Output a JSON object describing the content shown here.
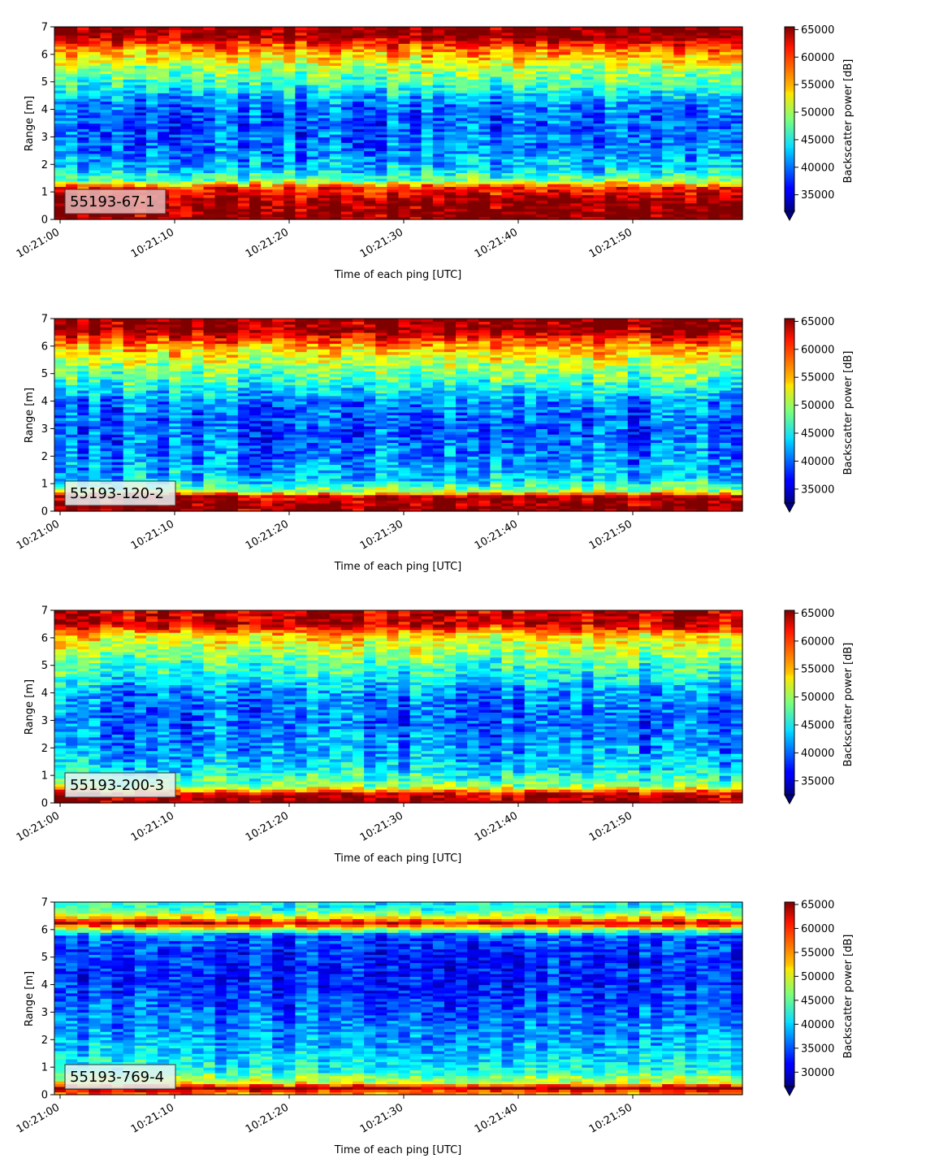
{
  "chart_data": [
    {
      "type": "heatmap",
      "label": "55193-67-1",
      "xlabel": "Time of each ping [UTC]",
      "ylabel": "Range [m]",
      "x_ticks": [
        "10:21:00",
        "10:21:10",
        "10:21:20",
        "10:21:30",
        "10:21:40",
        "10:21:50"
      ],
      "y_ticks": [
        0,
        1,
        2,
        3,
        4,
        5,
        6,
        7
      ],
      "ylim": [
        0,
        7
      ],
      "colorbar": {
        "label": "Backscatter power [dB]",
        "ticks": [
          35000,
          40000,
          45000,
          50000,
          55000,
          60000,
          65000
        ],
        "range": [
          32000,
          65500
        ],
        "colormap": "jet"
      },
      "profile": [
        {
          "range": 0.15,
          "value": 65000
        },
        {
          "range": 0.6,
          "value": 65000
        },
        {
          "range": 1.15,
          "value": 60000
        },
        {
          "range": 1.45,
          "value": 48000
        },
        {
          "range": 1.8,
          "value": 43000
        },
        {
          "range": 2.5,
          "value": 40000
        },
        {
          "range": 3.5,
          "value": 39000
        },
        {
          "range": 4.2,
          "value": 40000
        },
        {
          "range": 4.8,
          "value": 45000
        },
        {
          "range": 5.5,
          "value": 50000
        },
        {
          "range": 6.2,
          "value": 57000
        },
        {
          "range": 6.7,
          "value": 65000
        },
        {
          "range": 7.0,
          "value": 65000
        }
      ]
    },
    {
      "type": "heatmap",
      "label": "55193-120-2",
      "xlabel": "Time of each ping [UTC]",
      "ylabel": "Range [m]",
      "x_ticks": [
        "10:21:00",
        "10:21:10",
        "10:21:20",
        "10:21:30",
        "10:21:40",
        "10:21:50"
      ],
      "y_ticks": [
        0,
        1,
        2,
        3,
        4,
        5,
        6,
        7
      ],
      "ylim": [
        0,
        7
      ],
      "colorbar": {
        "label": "Backscatter power [dB]",
        "ticks": [
          35000,
          40000,
          45000,
          50000,
          55000,
          60000,
          65000
        ],
        "range": [
          32500,
          65500
        ],
        "colormap": "jet"
      },
      "profile": [
        {
          "range": 0.15,
          "value": 65000
        },
        {
          "range": 0.55,
          "value": 64000
        },
        {
          "range": 0.75,
          "value": 50000
        },
        {
          "range": 1.2,
          "value": 43000
        },
        {
          "range": 2.0,
          "value": 41000
        },
        {
          "range": 3.0,
          "value": 39500
        },
        {
          "range": 4.0,
          "value": 41000
        },
        {
          "range": 4.6,
          "value": 46000
        },
        {
          "range": 5.3,
          "value": 50000
        },
        {
          "range": 6.0,
          "value": 56000
        },
        {
          "range": 6.6,
          "value": 65000
        },
        {
          "range": 7.0,
          "value": 65000
        }
      ]
    },
    {
      "type": "heatmap",
      "label": "55193-200-3",
      "xlabel": "Time of each ping [UTC]",
      "ylabel": "Range [m]",
      "x_ticks": [
        "10:21:00",
        "10:21:10",
        "10:21:20",
        "10:21:30",
        "10:21:40",
        "10:21:50"
      ],
      "y_ticks": [
        0,
        1,
        2,
        3,
        4,
        5,
        6,
        7
      ],
      "ylim": [
        0,
        7
      ],
      "colorbar": {
        "label": "Backscatter power [dB]",
        "ticks": [
          35000,
          40000,
          45000,
          50000,
          55000,
          60000,
          65000
        ],
        "range": [
          32500,
          65500
        ],
        "colormap": "jet"
      },
      "profile": [
        {
          "range": 0.1,
          "value": 65000
        },
        {
          "range": 0.35,
          "value": 62000
        },
        {
          "range": 0.6,
          "value": 50000
        },
        {
          "range": 1.2,
          "value": 44000
        },
        {
          "range": 2.0,
          "value": 41500
        },
        {
          "range": 3.0,
          "value": 40000
        },
        {
          "range": 4.0,
          "value": 41000
        },
        {
          "range": 4.6,
          "value": 45000
        },
        {
          "range": 5.3,
          "value": 48500
        },
        {
          "range": 6.1,
          "value": 54000
        },
        {
          "range": 6.5,
          "value": 63000
        },
        {
          "range": 7.0,
          "value": 63000
        }
      ]
    },
    {
      "type": "heatmap",
      "label": "55193-769-4",
      "xlabel": "Time of each ping [UTC]",
      "ylabel": "Range [m]",
      "x_ticks": [
        "10:21:00",
        "10:21:10",
        "10:21:20",
        "10:21:30",
        "10:21:40",
        "10:21:50"
      ],
      "y_ticks": [
        0,
        1,
        2,
        3,
        4,
        5,
        6,
        7
      ],
      "ylim": [
        0,
        7
      ],
      "colorbar": {
        "label": "Backscatter power [dB]",
        "ticks": [
          30000,
          35000,
          40000,
          45000,
          50000,
          55000,
          60000,
          65000
        ],
        "range": [
          27000,
          65500
        ],
        "colormap": "jet"
      },
      "profile": [
        {
          "range": 0.1,
          "value": 56000
        },
        {
          "range": 0.25,
          "value": 65000
        },
        {
          "range": 0.45,
          "value": 50000
        },
        {
          "range": 0.9,
          "value": 42000
        },
        {
          "range": 2.0,
          "value": 38000
        },
        {
          "range": 3.0,
          "value": 35500
        },
        {
          "range": 4.0,
          "value": 33500
        },
        {
          "range": 5.0,
          "value": 33000
        },
        {
          "range": 5.8,
          "value": 35000
        },
        {
          "range": 6.25,
          "value": 62000
        },
        {
          "range": 6.5,
          "value": 50000
        },
        {
          "range": 6.8,
          "value": 42000
        },
        {
          "range": 7.0,
          "value": 42000
        }
      ]
    }
  ]
}
